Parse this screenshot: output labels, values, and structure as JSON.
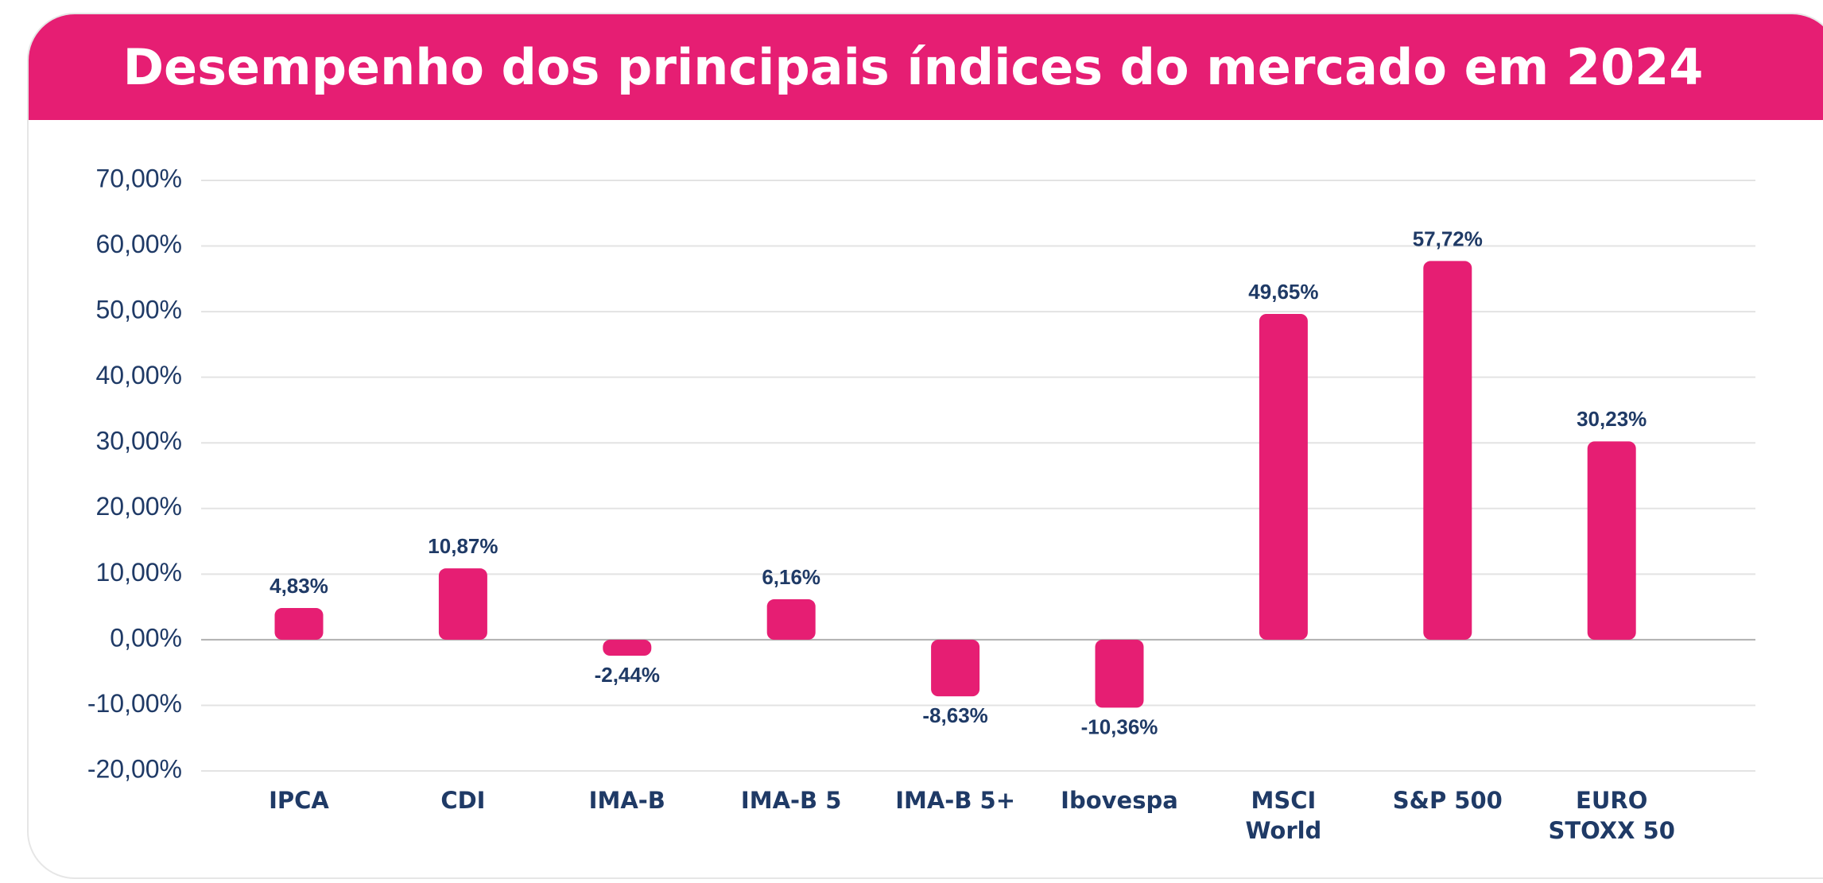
{
  "chart_data": {
    "type": "bar",
    "title": "Desempenho dos principais índices do mercado em 2024",
    "categories": [
      "IPCA",
      "CDI",
      "IMA-B",
      "IMA-B 5",
      "IMA-B 5+",
      "Ibovespa",
      "MSCI\nWorld",
      "S&P 500",
      "EURO\nSTOXX 50"
    ],
    "values": [
      4.83,
      10.87,
      -2.44,
      6.16,
      -8.63,
      -10.36,
      49.65,
      57.72,
      30.23
    ],
    "value_labels": [
      "4,83%",
      "10,87%",
      "-2,44%",
      "6,16%",
      "-8,63%",
      "-10,36%",
      "49,65%",
      "57,72%",
      "30,23%"
    ],
    "color": "#e61e73",
    "ylim": [
      -20,
      70
    ],
    "yticks": [
      {
        "value": -20,
        "label": "-20,00%"
      },
      {
        "value": -10,
        "label": "-10,00%"
      },
      {
        "value": 0,
        "label": "0,00%"
      },
      {
        "value": 10,
        "label": "10,00%"
      },
      {
        "value": 20,
        "label": "20,00%"
      },
      {
        "value": 30,
        "label": "30,00%"
      },
      {
        "value": 40,
        "label": "40,00%"
      },
      {
        "value": 50,
        "label": "50,00%"
      },
      {
        "value": 60,
        "label": "60,00%"
      },
      {
        "value": 70,
        "label": "70,00%"
      }
    ],
    "grid": true
  }
}
